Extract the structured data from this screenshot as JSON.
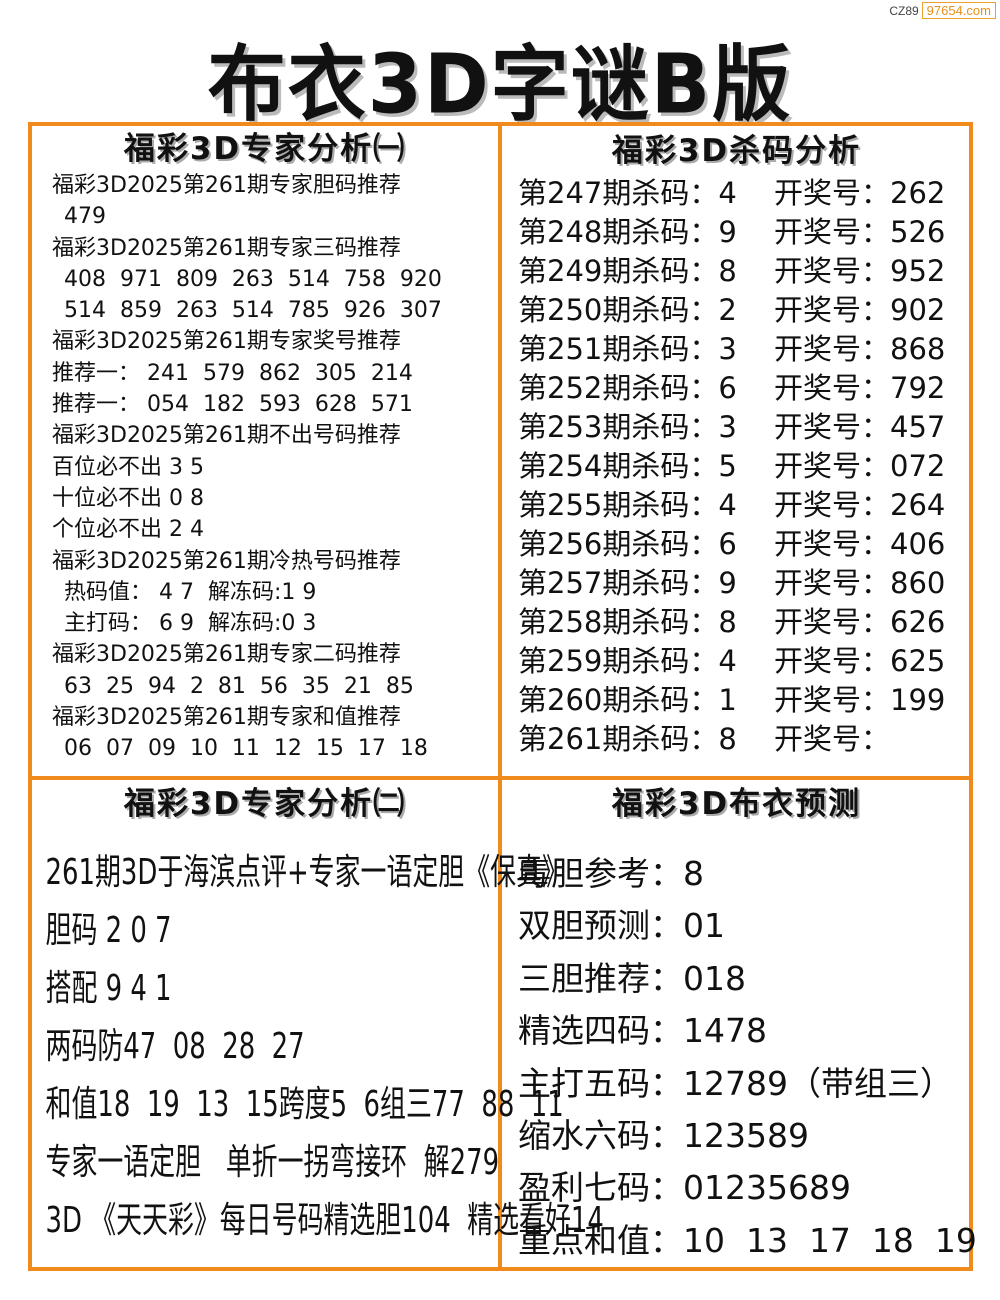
{
  "watermark": {
    "prefix": "CZ89",
    "domain": "97654.com"
  },
  "title": "布衣3D字谜B版",
  "colors": {
    "accent": "#f08a1c",
    "text": "#111111"
  },
  "expert1": {
    "title": "福彩3D专家分析㈠",
    "lines": [
      {
        "text": "福彩3D2025第261期专家胆码推荐",
        "indent": false
      },
      {
        "text": "479",
        "indent": true
      },
      {
        "text": "福彩3D2025第261期专家三码推荐",
        "indent": false
      },
      {
        "text": "408  971  809  263  514  758  920",
        "indent": true
      },
      {
        "text": "514  859  263  514  785  926  307",
        "indent": true
      },
      {
        "text": "福彩3D2025第261期专家奖号推荐",
        "indent": false
      },
      {
        "text": "推荐一： 241  579  862  305  214",
        "indent": false
      },
      {
        "text": "推荐一： 054  182  593  628  571",
        "indent": false
      },
      {
        "text": "福彩3D2025第261期不出号码推荐",
        "indent": false
      },
      {
        "text": "百位必不出 3 5",
        "indent": false
      },
      {
        "text": "十位必不出 0 8",
        "indent": false
      },
      {
        "text": "个位必不出 2 4",
        "indent": false
      },
      {
        "text": "福彩3D2025第261期冷热号码推荐",
        "indent": false
      },
      {
        "text": "热码值： 4 7  解冻码:1 9",
        "indent": true
      },
      {
        "text": "主打码： 6 9  解冻码:0 3",
        "indent": true
      },
      {
        "text": "福彩3D2025第261期专家二码推荐",
        "indent": false
      },
      {
        "text": "63  25  94  2  81  56  35  21  85",
        "indent": true
      },
      {
        "text": "福彩3D2025第261期专家和值推荐",
        "indent": false
      },
      {
        "text": "06  07  09  10  11  12  15  17  18",
        "indent": true
      }
    ]
  },
  "kill": {
    "title": "福彩3D杀码分析",
    "rows": [
      {
        "kill": "第247期杀码：4",
        "draw": "开奖号：262"
      },
      {
        "kill": "第248期杀码：9",
        "draw": "开奖号：526"
      },
      {
        "kill": "第249期杀码：8",
        "draw": "开奖号：952"
      },
      {
        "kill": "第250期杀码：2",
        "draw": "开奖号：902"
      },
      {
        "kill": "第251期杀码：3",
        "draw": "开奖号：868"
      },
      {
        "kill": "第252期杀码：6",
        "draw": "开奖号：792"
      },
      {
        "kill": "第253期杀码：3",
        "draw": "开奖号：457"
      },
      {
        "kill": "第254期杀码：5",
        "draw": "开奖号：072"
      },
      {
        "kill": "第255期杀码：4",
        "draw": "开奖号：264"
      },
      {
        "kill": "第256期杀码：6",
        "draw": "开奖号：406"
      },
      {
        "kill": "第257期杀码：9",
        "draw": "开奖号：860"
      },
      {
        "kill": "第258期杀码：8",
        "draw": "开奖号：626"
      },
      {
        "kill": "第259期杀码：4",
        "draw": "开奖号：625"
      },
      {
        "kill": "第260期杀码：1",
        "draw": "开奖号：199"
      },
      {
        "kill": "第261期杀码：8",
        "draw": "开奖号："
      }
    ]
  },
  "expert2": {
    "title": "福彩3D专家分析㈡",
    "lines": [
      "261期3D于海滨点评+专家一语定胆《保真》",
      "胆码 2 0 7",
      "搭配 9 4 1",
      "两码防47  08  28  27",
      "和值18  19  13  15跨度5  6组三77  88  11",
      "专家一语定胆   单折一拐弯接环  解279",
      "3D 《天天彩》每日号码精选胆104  精选看好14"
    ]
  },
  "forecast": {
    "title": "福彩3D布衣预测",
    "lines": [
      "毒胆参考：8",
      "双胆预测：01",
      "三胆推荐：018",
      "精选四码：1478",
      "主打五码：12789（带组三）",
      "缩水六码：123589",
      "盈利七码：01235689",
      "重点和值：10  13  17  18  19"
    ]
  }
}
